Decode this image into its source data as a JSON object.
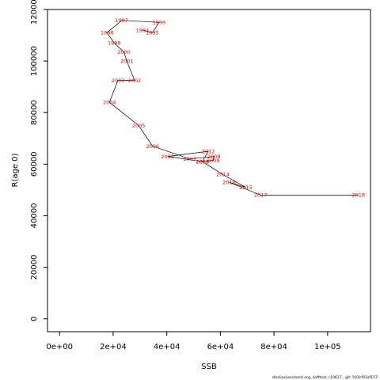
{
  "chart_data": {
    "type": "line",
    "xlabel": "SSB",
    "ylabel": "R(age 0)",
    "xlim": [
      -4500,
      116000
    ],
    "ylim": [
      -5000,
      120000
    ],
    "x_ticks": [
      0,
      20000,
      40000,
      60000,
      80000,
      100000
    ],
    "x_tick_labels": [
      "0e+00",
      "2e+04",
      "4e+04",
      "6e+04",
      "8e+04",
      "1e+05"
    ],
    "y_ticks": [
      0,
      20000,
      40000,
      60000,
      80000,
      100000,
      120000
    ],
    "y_tick_labels": [
      "0",
      "20000",
      "40000",
      "60000",
      "80000",
      "100000",
      "120000"
    ],
    "grid": false,
    "line_color": "#000000",
    "label_color": "#ff0000",
    "points": [
      {
        "year": "1994",
        "x": 30900,
        "y": 112000
      },
      {
        "year": "1995",
        "x": 34600,
        "y": 111000
      },
      {
        "year": "1996",
        "x": 37100,
        "y": 115000
      },
      {
        "year": "1997",
        "x": 23200,
        "y": 115800
      },
      {
        "year": "1998",
        "x": 17700,
        "y": 111000
      },
      {
        "year": "1999",
        "x": 20400,
        "y": 107000
      },
      {
        "year": "2000",
        "x": 24000,
        "y": 103500
      },
      {
        "year": "2001",
        "x": 25100,
        "y": 100000
      },
      {
        "year": "2002",
        "x": 28000,
        "y": 92500
      },
      {
        "year": "2003",
        "x": 21800,
        "y": 92500
      },
      {
        "year": "2004",
        "x": 18600,
        "y": 84000
      },
      {
        "year": "2005",
        "x": 29500,
        "y": 75000
      },
      {
        "year": "2006",
        "x": 34700,
        "y": 67000
      },
      {
        "year": "2007",
        "x": 48600,
        "y": 62000
      },
      {
        "year": "2008",
        "x": 57600,
        "y": 63000
      },
      {
        "year": "2009",
        "x": 57300,
        "y": 61500
      },
      {
        "year": "2010",
        "x": 53400,
        "y": 61000
      },
      {
        "year": "2011",
        "x": 40300,
        "y": 63000
      },
      {
        "year": "2012",
        "x": 55500,
        "y": 65000
      },
      {
        "year": "2013",
        "x": 53300,
        "y": 61000
      },
      {
        "year": "2014",
        "x": 60900,
        "y": 56000
      },
      {
        "year": "2015",
        "x": 69500,
        "y": 51000
      },
      {
        "year": "2016",
        "x": 63300,
        "y": 53000
      },
      {
        "year": "2017",
        "x": 75000,
        "y": 48000
      },
      {
        "year": "2018",
        "x": 111500,
        "y": 48000
      }
    ]
  },
  "footer": "stockassessment.org, softtest, r10617 , git: 503cf91af157"
}
